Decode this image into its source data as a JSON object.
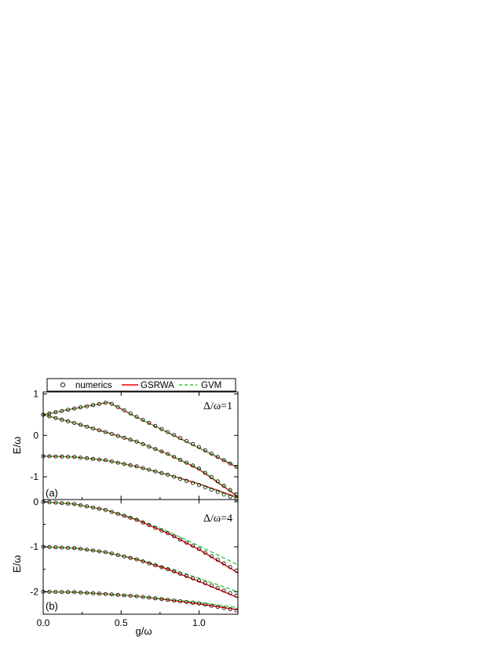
{
  "legend": {
    "items": [
      {
        "label": "numerics",
        "marker": "open-circle",
        "color": "#000000"
      },
      {
        "label": "GSRWA",
        "style": "solid",
        "color": "#e8000b"
      },
      {
        "label": "GVM",
        "style": "dashed",
        "color": "#33cc33"
      }
    ]
  },
  "colors": {
    "numerics": "#000000",
    "gsrwa": "#e8000b",
    "gvm": "#33cc33"
  },
  "chart_data": [
    {
      "type": "line",
      "panel_label": "(a)",
      "annotation": "Δ/ω=1",
      "xlabel": "g/ω",
      "ylabel": "E/ω",
      "xlim": [
        0,
        1.25
      ],
      "ylim": [
        -1.55,
        1.05
      ],
      "xticks": [
        0.0,
        0.5,
        1.0
      ],
      "xtick_labels": [
        "0.0",
        "0.5",
        "1.0"
      ],
      "yticks": [
        -1,
        0,
        1
      ],
      "ytick_labels": [
        "-1",
        "0",
        "1"
      ],
      "grid": false,
      "legend_position": "top",
      "levels": [
        {
          "x": [
            0.0,
            0.2,
            0.42,
            0.6,
            0.8,
            1.0,
            1.25
          ],
          "numerics": [
            0.5,
            0.65,
            0.8,
            0.45,
            0.08,
            -0.28,
            -0.78
          ],
          "gsrwa": [
            0.5,
            0.65,
            0.8,
            0.44,
            0.07,
            -0.3,
            -0.78
          ],
          "gvm": [
            0.5,
            0.65,
            0.8,
            0.44,
            0.07,
            -0.3,
            -0.76
          ]
        },
        {
          "x": [
            0.0,
            0.2,
            0.4,
            0.6,
            0.8,
            1.0,
            1.25
          ],
          "numerics": [
            0.5,
            0.3,
            0.08,
            -0.15,
            -0.45,
            -0.8,
            -1.45
          ],
          "gsrwa": [
            0.5,
            0.3,
            0.08,
            -0.15,
            -0.45,
            -0.82,
            -1.48
          ],
          "gvm": [
            0.5,
            0.3,
            0.08,
            -0.15,
            -0.45,
            -0.8,
            -1.46
          ]
        },
        {
          "x": [
            0.0,
            0.2,
            0.4,
            0.6,
            0.8,
            1.0,
            1.25
          ],
          "numerics": [
            -0.5,
            -0.52,
            -0.6,
            -0.75,
            -0.95,
            -1.2,
            -1.55
          ],
          "gsrwa": [
            -0.5,
            -0.52,
            -0.6,
            -0.75,
            -0.95,
            -1.17,
            -1.5
          ],
          "gvm": [
            -0.5,
            -0.52,
            -0.6,
            -0.75,
            -0.95,
            -1.18,
            -1.52
          ]
        }
      ]
    },
    {
      "type": "line",
      "panel_label": "(b)",
      "annotation": "Δ/ω=4",
      "xlabel": "g/ω",
      "ylabel": "E/ω",
      "xlim": [
        0,
        1.25
      ],
      "ylim": [
        -2.5,
        0.05
      ],
      "xticks": [
        0.0,
        0.5,
        1.0
      ],
      "xtick_labels": [
        "0.0",
        "0.5",
        "1.0"
      ],
      "yticks": [
        -2,
        -1,
        0
      ],
      "ytick_labels": [
        "-2",
        "-1",
        "0"
      ],
      "grid": false,
      "levels": [
        {
          "x": [
            0.0,
            0.2,
            0.4,
            0.6,
            0.8,
            1.0,
            1.25
          ],
          "numerics": [
            0.0,
            -0.05,
            -0.18,
            -0.4,
            -0.7,
            -1.05,
            -1.55
          ],
          "gsrwa": [
            0.0,
            -0.05,
            -0.18,
            -0.4,
            -0.7,
            -1.06,
            -1.58
          ],
          "gvm": [
            0.0,
            -0.05,
            -0.18,
            -0.38,
            -0.66,
            -0.98,
            -1.4
          ]
        },
        {
          "x": [
            0.0,
            0.2,
            0.4,
            0.6,
            0.8,
            1.0,
            1.25
          ],
          "numerics": [
            -1.0,
            -1.03,
            -1.12,
            -1.28,
            -1.5,
            -1.75,
            -2.1
          ],
          "gsrwa": [
            -1.0,
            -1.03,
            -1.12,
            -1.28,
            -1.5,
            -1.77,
            -2.13
          ],
          "gvm": [
            -1.0,
            -1.03,
            -1.12,
            -1.27,
            -1.47,
            -1.7,
            -2.0
          ]
        },
        {
          "x": [
            0.0,
            0.2,
            0.4,
            0.6,
            0.8,
            1.0,
            1.25
          ],
          "numerics": [
            -2.0,
            -2.01,
            -2.05,
            -2.1,
            -2.18,
            -2.26,
            -2.42
          ],
          "gsrwa": [
            -2.0,
            -2.01,
            -2.05,
            -2.1,
            -2.18,
            -2.27,
            -2.4
          ],
          "gvm": [
            -2.0,
            -2.01,
            -2.05,
            -2.1,
            -2.17,
            -2.24,
            -2.35
          ]
        }
      ]
    }
  ]
}
